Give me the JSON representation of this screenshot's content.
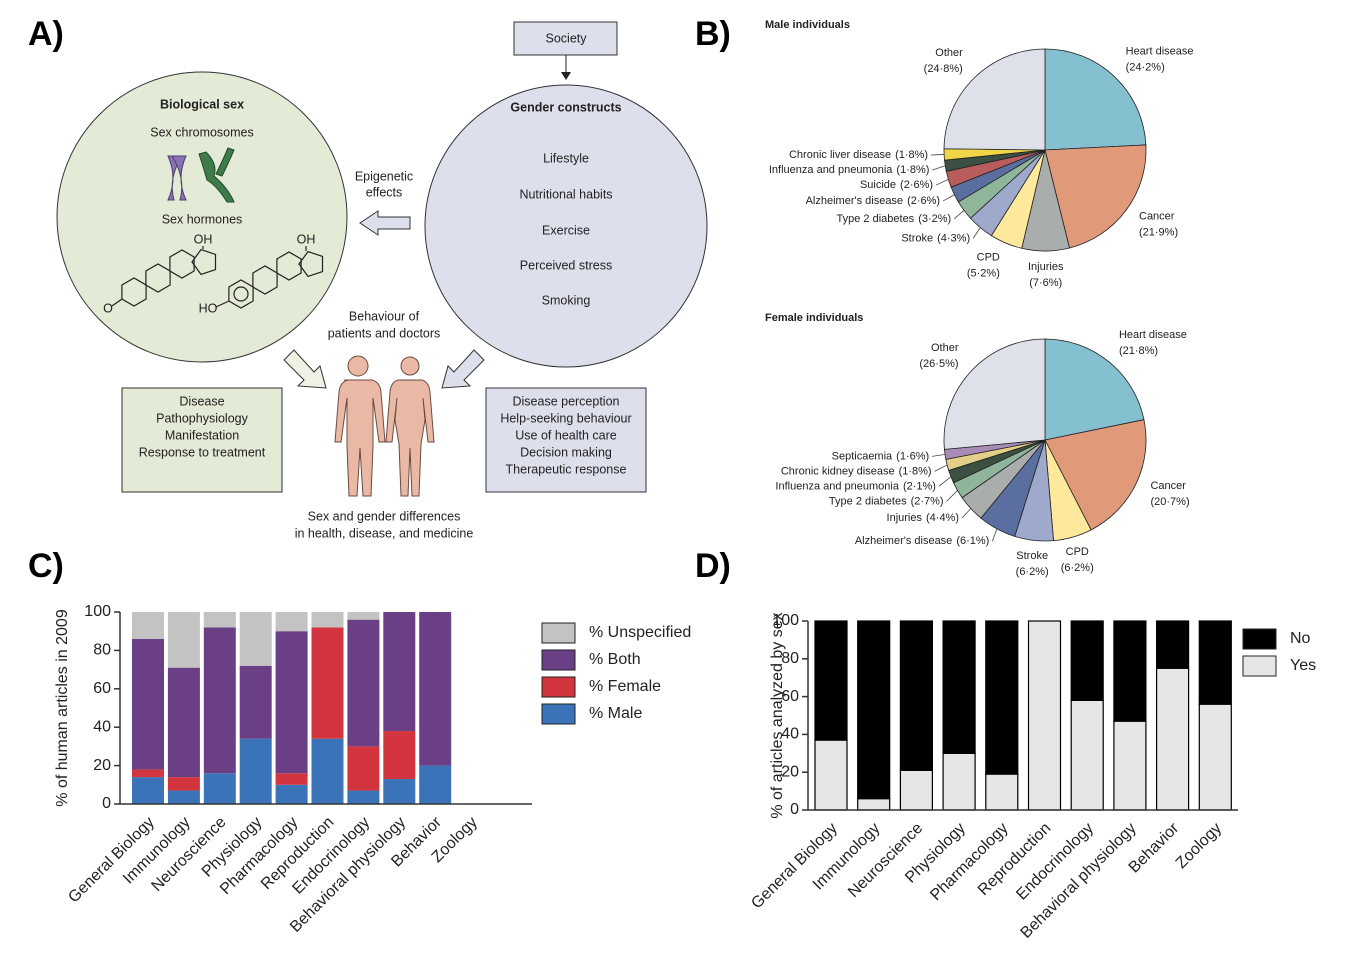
{
  "diagram": {
    "panel_label": "A)",
    "society": "Society",
    "biological_sex": {
      "title": "Biological sex",
      "chromosomes": "Sex chromosomes",
      "hormones": "Sex hormones",
      "oh_1": "OH",
      "oh_2": "OH",
      "o": "O",
      "ho": "HO"
    },
    "epigenetic": [
      "Epigenetic",
      "effects"
    ],
    "gender_constructs": {
      "title": "Gender constructs",
      "items": [
        "Lifestyle",
        "Nutritional habits",
        "Exercise",
        "Perceived stress",
        "Smoking"
      ]
    },
    "behaviour": [
      "Behaviour of",
      "patients and doctors"
    ],
    "left_box": [
      "Disease",
      "Pathophysiology",
      "Manifestation",
      "Response to treatment"
    ],
    "right_box": [
      "Disease perception",
      "Help-seeking behaviour",
      "Use of health care",
      "Decision making",
      "Therapeutic response"
    ],
    "caption": [
      "Sex and gender differences",
      "in health, disease, and medicine"
    ]
  },
  "chart_data": [
    {
      "type": "pie",
      "panel_label": "B)",
      "title": "Male individuals",
      "categories": [
        "Heart disease",
        "Cancer",
        "Injuries",
        "CPD",
        "Stroke",
        "Type 2 diabetes",
        "Alzheimer's disease",
        "Suicide",
        "Influenza and pneumonia",
        "Chronic liver disease",
        "Other"
      ],
      "values": [
        24.2,
        21.9,
        7.6,
        5.2,
        4.3,
        3.2,
        2.6,
        2.6,
        1.8,
        1.8,
        24.8
      ],
      "value_labels": [
        "(24·2%)",
        "(21·9%)",
        "(7·6%)",
        "(5·2%)",
        "(4·3%)",
        "(3·2%)",
        "(2·6%)",
        "(2·6%)",
        "(1·8%)",
        "(1·8%)",
        "(24·8%)"
      ],
      "colors": [
        "#84c0cf",
        "#e09a7a",
        "#a9aeac",
        "#fde89b",
        "#9ea9cc",
        "#8fb59a",
        "#5a6fa0",
        "#b85c5c",
        "#3c4f43",
        "#f1d548",
        "#dfe1ea"
      ]
    },
    {
      "type": "pie",
      "title": "Female individuals",
      "categories": [
        "Heart disease",
        "Cancer",
        "CPD",
        "Stroke",
        "Alzheimer's disease",
        "Injuries",
        "Type 2 diabetes",
        "Influenza and pneumonia",
        "Chronic kidney disease",
        "Septicaemia",
        "Other"
      ],
      "values": [
        21.8,
        20.7,
        6.2,
        6.2,
        6.1,
        4.4,
        2.7,
        2.1,
        1.8,
        1.6,
        26.5
      ],
      "value_labels": [
        "(21·8%)",
        "(20·7%)",
        "(6·2%)",
        "(6·2%)",
        "(6·1%)",
        "(4·4%)",
        "(2·7%)",
        "(2·1%)",
        "(1·8%)",
        "(1·6%)",
        "(26·5%)"
      ],
      "colors": [
        "#84c0cf",
        "#e09a7a",
        "#fde89b",
        "#9ea9cc",
        "#5a6fa0",
        "#a9aeac",
        "#8fb59a",
        "#3c4f43",
        "#e2cf8a",
        "#a98cb5",
        "#dfe1ea"
      ]
    },
    {
      "type": "bar",
      "stacked": true,
      "panel_label": "C)",
      "y_label": "% of human articles in 2009",
      "categories": [
        "General Biology",
        "Immunology",
        "Neuroscience",
        "Physiology",
        "Pharmacology",
        "Reproduction",
        "Endocrinology",
        "Behavioral physiology",
        "Behavior",
        "Zoology"
      ],
      "series": [
        {
          "name": "% Male",
          "color": "#3a73b8",
          "values": [
            14,
            7,
            16,
            34,
            10,
            34,
            7,
            13,
            20,
            0
          ]
        },
        {
          "name": "% Female",
          "color": "#d3353f",
          "values": [
            4,
            7,
            0,
            0,
            6,
            58,
            23,
            25,
            0,
            0
          ]
        },
        {
          "name": "% Both",
          "color": "#6a3f86",
          "values": [
            68,
            57,
            76,
            38,
            74,
            0,
            66,
            62,
            80,
            0
          ]
        },
        {
          "name": "% Unspecified",
          "color": "#c3c3c3",
          "values": [
            14,
            29,
            8,
            28,
            10,
            8,
            4,
            0,
            0,
            0
          ]
        }
      ],
      "ylim": [
        0,
        100
      ],
      "yticks": [
        0,
        20,
        40,
        60,
        80,
        100
      ],
      "legend": "right"
    },
    {
      "type": "bar",
      "stacked": true,
      "panel_label": "D)",
      "y_label": "% of articles analyzed by sex",
      "categories": [
        "General Biology",
        "Immunology",
        "Neuroscience",
        "Physiology",
        "Pharmacology",
        "Reproduction",
        "Endocrinology",
        "Behavioral physiology",
        "Behavior",
        "Zoology"
      ],
      "series": [
        {
          "name": "Yes",
          "color": "#e6e6e6",
          "values": [
            37,
            6,
            21,
            30,
            19,
            100,
            58,
            47,
            75,
            56
          ]
        },
        {
          "name": "No",
          "color": "#000000",
          "values": [
            63,
            94,
            79,
            70,
            81,
            0,
            42,
            53,
            25,
            44
          ]
        }
      ],
      "bar_edge": "#000000",
      "ylim": [
        0,
        100
      ],
      "yticks": [
        0,
        20,
        40,
        60,
        80,
        100
      ],
      "legend": "right"
    }
  ]
}
